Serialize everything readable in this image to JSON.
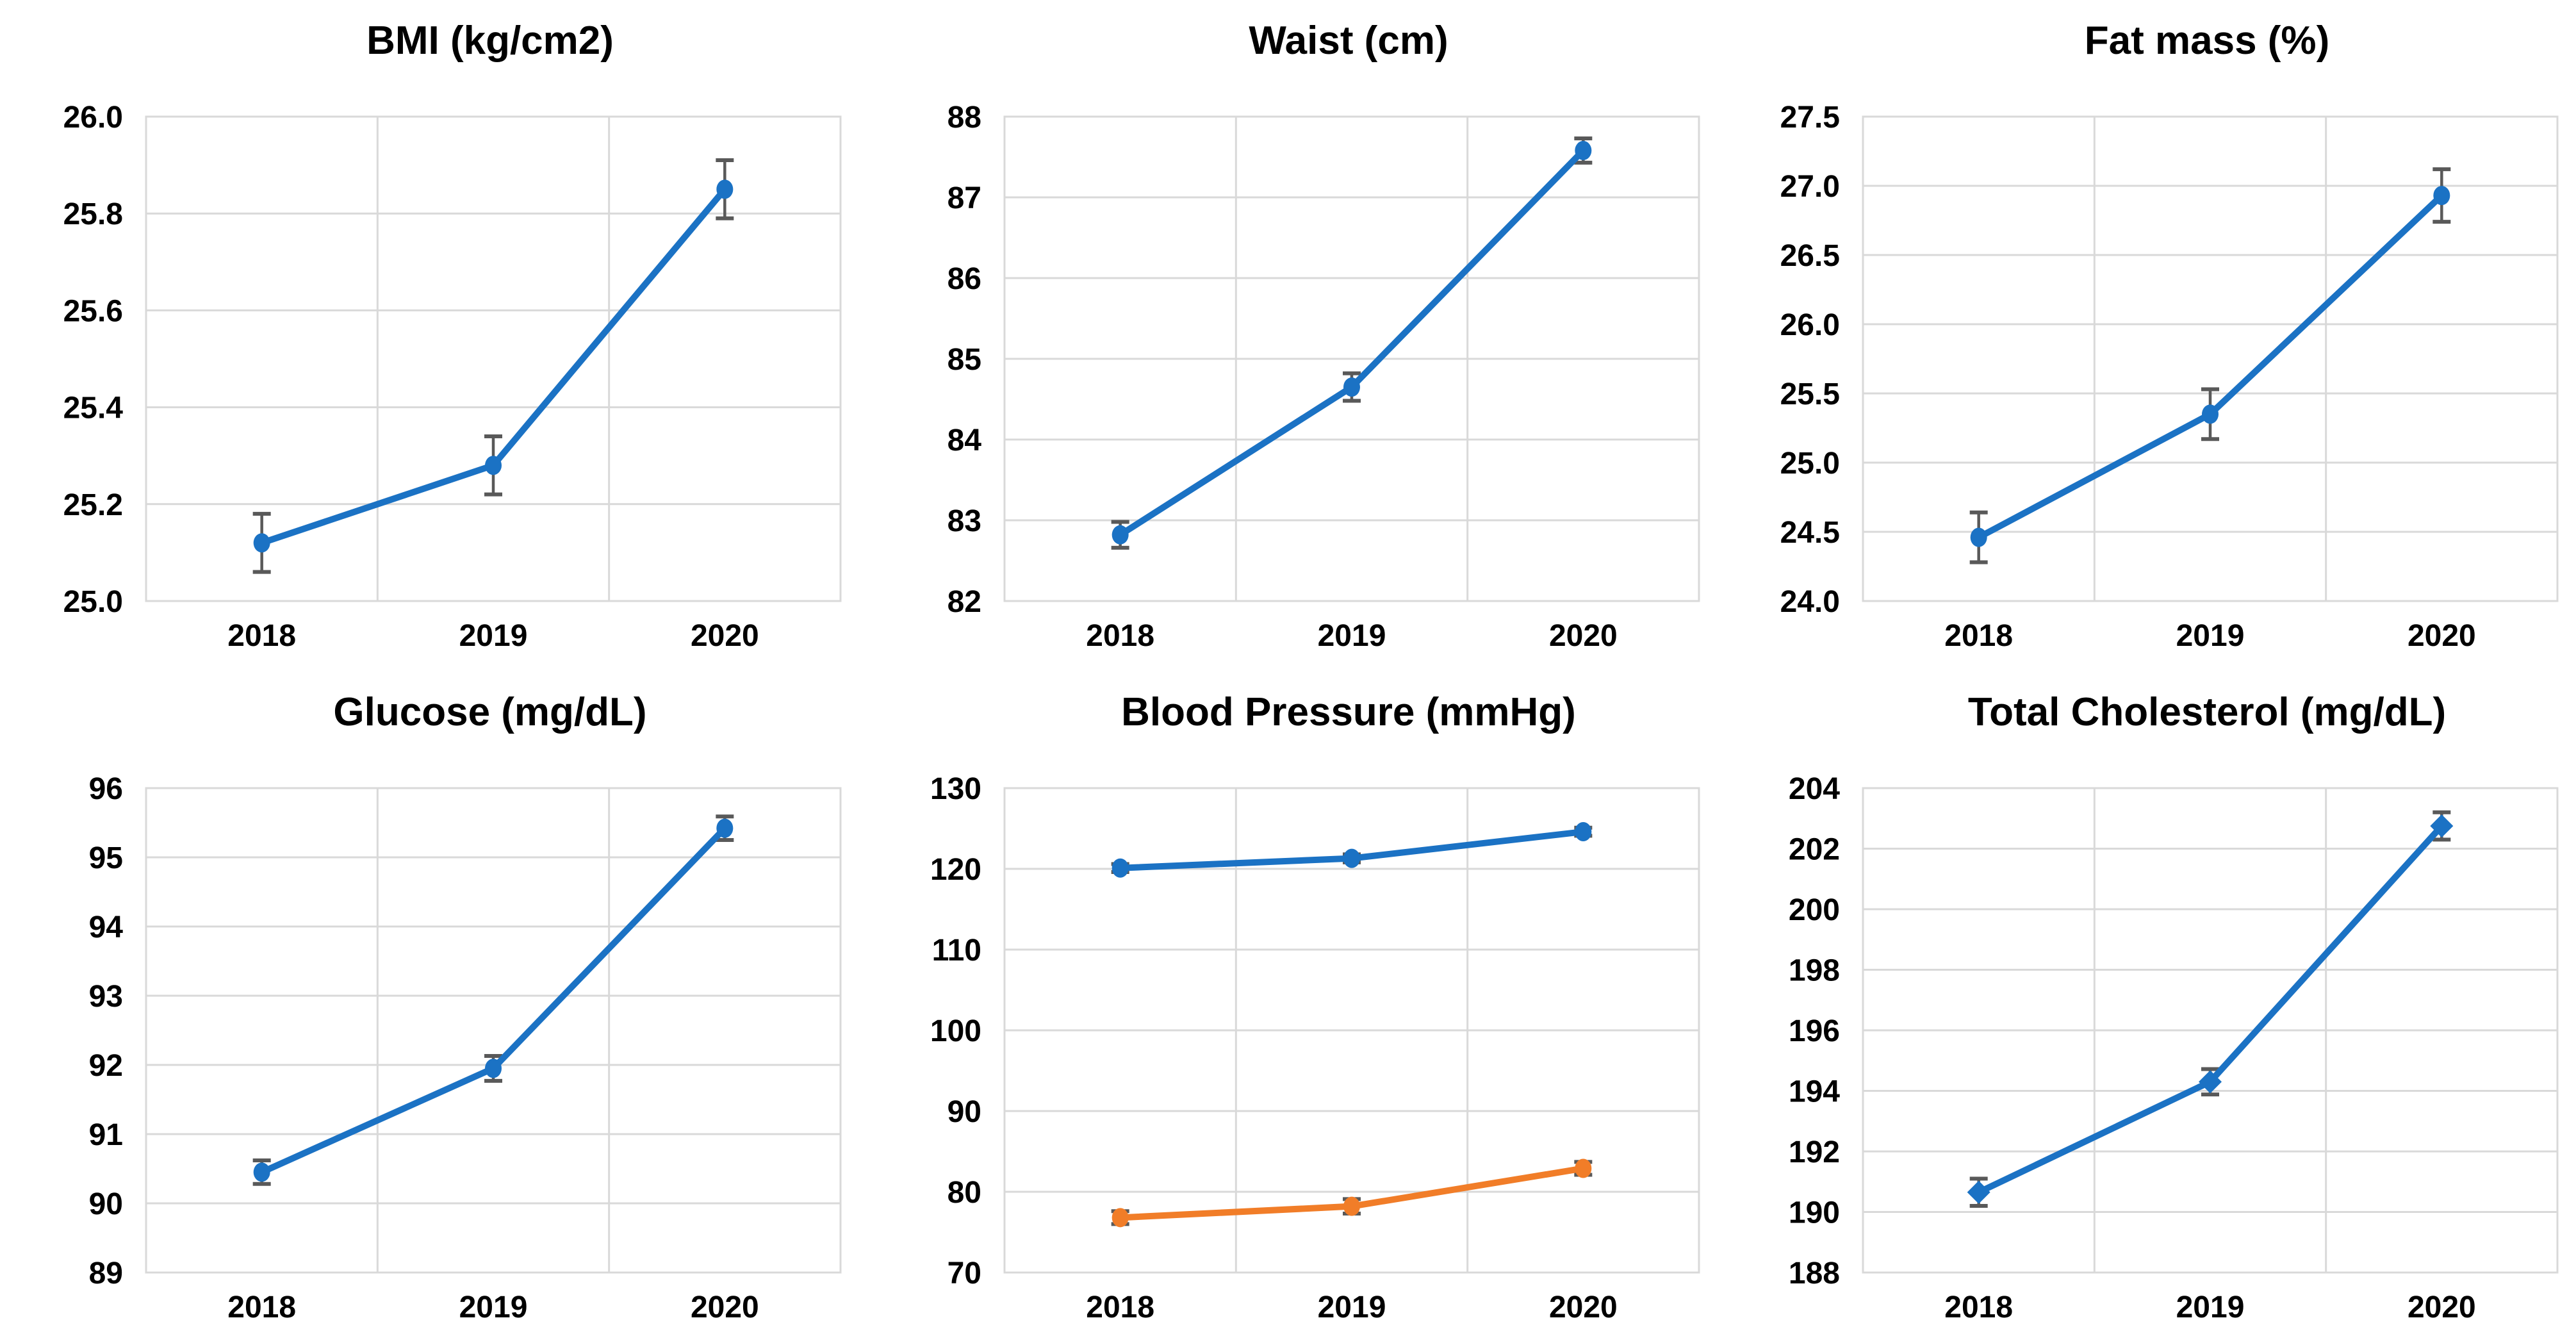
{
  "page": {
    "background": "#FFFFFF",
    "layout": "2x3 grid of line charts"
  },
  "colors": {
    "grid": "#D9D9D9",
    "plot_border": "#D9D9D9",
    "error_bar": "#595959",
    "text": "#000000",
    "series_blue": "#1B72C4",
    "series_orange": "#F17D28"
  },
  "chart_data": [
    {
      "type": "line",
      "title": "BMI (kg/cm2)",
      "categories": [
        "2018",
        "2019",
        "2020"
      ],
      "xlabel": "",
      "ylabel": "",
      "ylim": [
        25.0,
        26.0
      ],
      "ytick_step": 0.2,
      "ytick_decimals": 1,
      "grid": true,
      "legend": "none",
      "series": [
        {
          "color": "#1B72C4",
          "marker": "circle",
          "values": [
            25.12,
            25.28,
            25.85
          ],
          "errors": [
            0.06,
            0.06,
            0.06
          ]
        }
      ]
    },
    {
      "type": "line",
      "title": "Waist (cm)",
      "categories": [
        "2018",
        "2019",
        "2020"
      ],
      "xlabel": "",
      "ylabel": "",
      "ylim": [
        82,
        88
      ],
      "ytick_step": 1,
      "ytick_decimals": 0,
      "grid": true,
      "legend": "none",
      "series": [
        {
          "color": "#1B72C4",
          "marker": "circle",
          "values": [
            82.82,
            84.65,
            87.58
          ],
          "errors": [
            0.16,
            0.17,
            0.15
          ]
        }
      ]
    },
    {
      "type": "line",
      "title": "Fat mass (%)",
      "categories": [
        "2018",
        "2019",
        "2020"
      ],
      "xlabel": "",
      "ylabel": "",
      "ylim": [
        24.0,
        27.5
      ],
      "ytick_step": 0.5,
      "ytick_decimals": 1,
      "grid": true,
      "legend": "none",
      "series": [
        {
          "color": "#1B72C4",
          "marker": "circle",
          "values": [
            24.46,
            25.35,
            26.93
          ],
          "errors": [
            0.18,
            0.18,
            0.19
          ]
        }
      ]
    },
    {
      "type": "line",
      "title": "Glucose (mg/dL)",
      "categories": [
        "2018",
        "2019",
        "2020"
      ],
      "xlabel": "",
      "ylabel": "",
      "ylim": [
        89,
        96
      ],
      "ytick_step": 1,
      "ytick_decimals": 0,
      "grid": true,
      "legend": "none",
      "series": [
        {
          "color": "#1B72C4",
          "marker": "circle",
          "values": [
            90.45,
            91.95,
            95.42
          ],
          "errors": [
            0.17,
            0.18,
            0.17
          ]
        }
      ]
    },
    {
      "type": "line",
      "title": "Blood Pressure (mmHg)",
      "categories": [
        "2018",
        "2019",
        "2020"
      ],
      "xlabel": "",
      "ylabel": "",
      "ylim": [
        70,
        130
      ],
      "ytick_step": 10,
      "ytick_decimals": 0,
      "grid": true,
      "legend": "none",
      "series": [
        {
          "color": "#1B72C4",
          "marker": "circle",
          "values": [
            120.1,
            121.3,
            124.6
          ],
          "errors": [
            0.5,
            0.5,
            0.5
          ]
        },
        {
          "color": "#F17D28",
          "marker": "circle",
          "values": [
            76.8,
            78.2,
            82.9
          ],
          "errors": [
            0.8,
            0.9,
            0.8
          ]
        }
      ]
    },
    {
      "type": "line",
      "title": "Total Cholesterol (mg/dL)",
      "categories": [
        "2018",
        "2019",
        "2020"
      ],
      "xlabel": "",
      "ylabel": "",
      "ylim": [
        188,
        204
      ],
      "ytick_step": 2,
      "ytick_decimals": 0,
      "grid": true,
      "legend": "none",
      "series": [
        {
          "color": "#1B72C4",
          "marker": "diamond",
          "values": [
            190.65,
            194.3,
            202.75
          ],
          "errors": [
            0.45,
            0.42,
            0.45
          ]
        }
      ]
    }
  ]
}
